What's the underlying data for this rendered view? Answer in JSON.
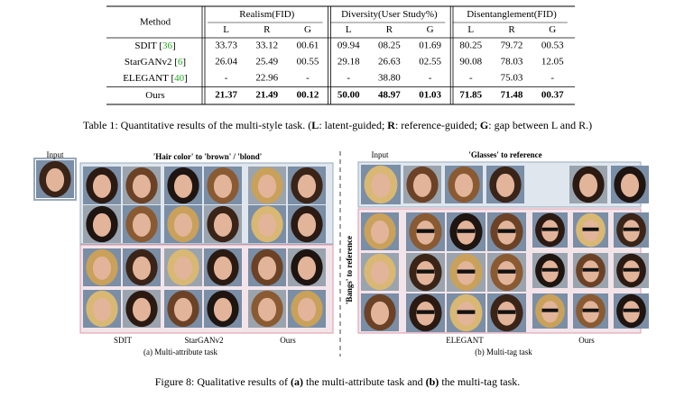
{
  "table": {
    "header": [
      "Method",
      "Realism(FID)",
      "Diversity(User Study%)",
      "Disentanglement(FID)"
    ],
    "subheader": [
      "L",
      "R",
      "G",
      "L",
      "R",
      "G",
      "L",
      "R",
      "G"
    ],
    "rows": [
      {
        "method": [
          "SDIT [",
          "36",
          "]"
        ],
        "values": [
          "33.73",
          "33.12",
          "00.61",
          "09.94",
          "08.25",
          "01.69",
          "80.25",
          "79.72",
          "00.53"
        ]
      },
      {
        "method": [
          "StarGANv2 [",
          "6",
          "]"
        ],
        "values": [
          "26.04",
          "25.49",
          "00.55",
          "29.18",
          "26.63",
          "02.55",
          "90.08",
          "78.03",
          "12.05"
        ]
      },
      {
        "method": [
          "ELEGANT [",
          "40",
          "]"
        ],
        "values": [
          "-",
          "22.96",
          "-",
          "-",
          "38.80",
          "-",
          "-",
          "75.03",
          "-"
        ]
      },
      {
        "method": [
          "Ours"
        ],
        "values": [
          "21.37",
          "21.49",
          "00.12",
          "50.00",
          "48.97",
          "01.03",
          "71.85",
          "71.48",
          "00.37"
        ]
      }
    ],
    "caption": [
      "Table 1: Quantitative results of the multi-style task. (",
      "L",
      ": latent-guided; ",
      "R",
      ": reference-guided; ",
      "G",
      ": gap between L and R.)"
    ]
  },
  "figure": {
    "left": {
      "input": "Input",
      "title": "'Hair color' to 'brown' / 'blond'",
      "methods": [
        "SDIT",
        "StarGANv2",
        "Ours"
      ],
      "subcaption": "(a) Multi-attribute task"
    },
    "right": {
      "input": "Input",
      "title": "'Glasses' to reference",
      "side": "'Bangs' to reference",
      "methods": [
        "ELEGANT",
        "Ours"
      ],
      "subcaption": "(b) Multi-tag task"
    },
    "caption": [
      "Figure 8: Qualitative results of ",
      "(a)",
      " the multi-attribute task and ",
      "(b)",
      " the multi-tag task."
    ]
  }
}
